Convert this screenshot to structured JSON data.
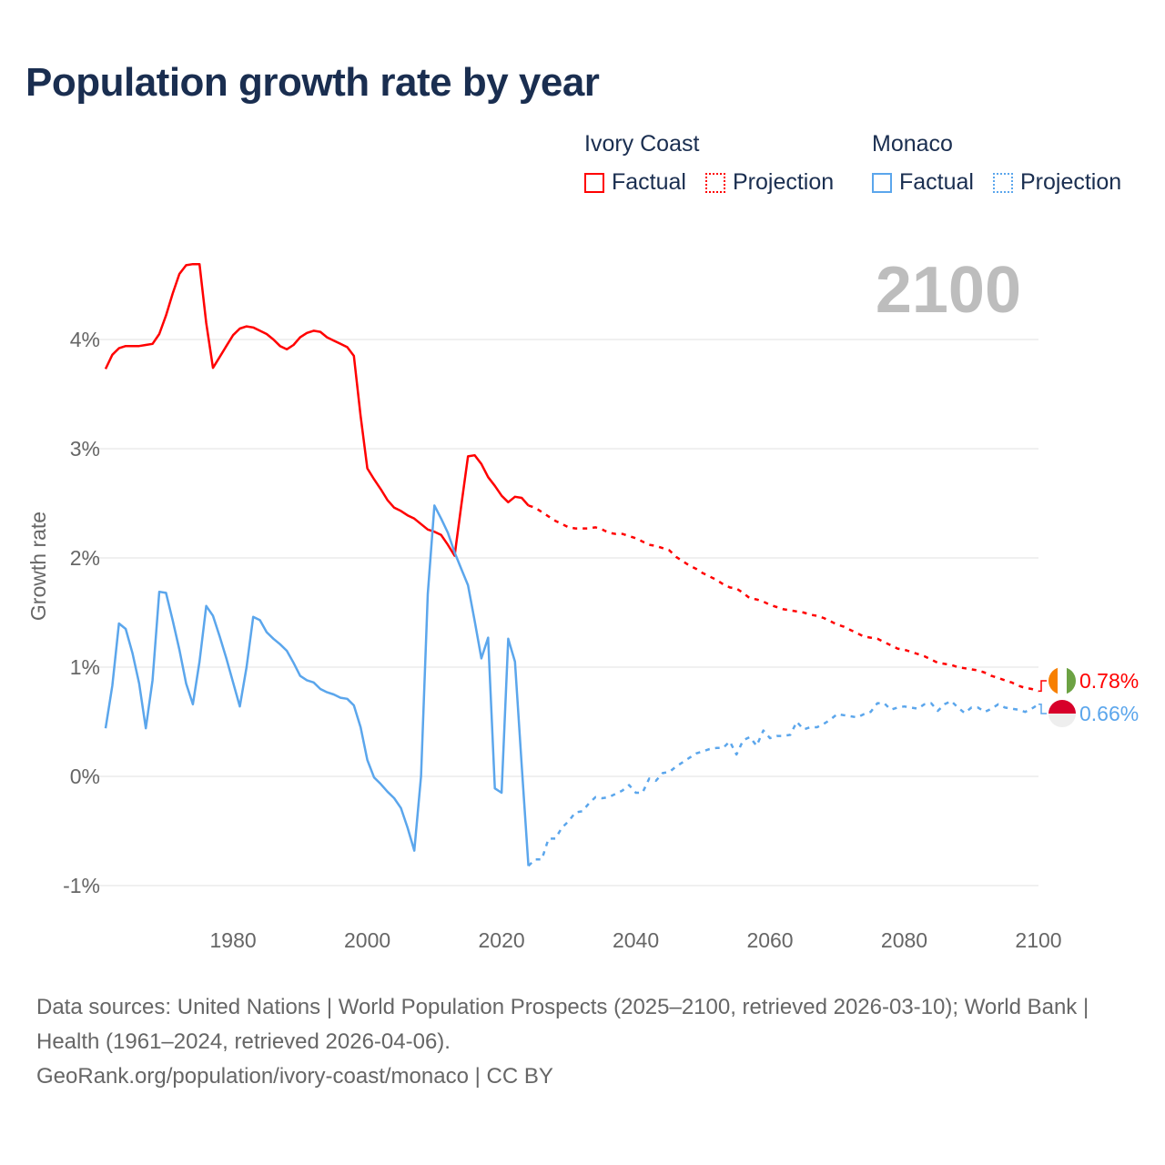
{
  "title": "Population growth rate by year",
  "legend": {
    "groups": [
      {
        "name": "Ivory Coast",
        "color": "#ff0000",
        "factual_label": "Factual",
        "projection_label": "Projection"
      },
      {
        "name": "Monaco",
        "color": "#5ba6ec",
        "factual_label": "Factual",
        "projection_label": "Projection"
      }
    ]
  },
  "year_display": "2100",
  "end_labels": {
    "ivory_coast": "0.78%",
    "monaco": "0.66%"
  },
  "flags": {
    "ivory_coast": [
      "#f77f00",
      "#ffffff",
      "#6ca243"
    ],
    "monaco": [
      "#d7002a",
      "#eeeeee"
    ]
  },
  "chart_data": {
    "type": "line",
    "title": "Population growth rate by year",
    "xlabel": "",
    "ylabel": "Growth rate",
    "xlim": [
      1961,
      2100
    ],
    "ylim": [
      -1.2,
      4.9
    ],
    "x_ticks": [
      1980,
      2000,
      2020,
      2040,
      2060,
      2080,
      2100
    ],
    "x_tick_labels": [
      "1980",
      "2000",
      "2020",
      "2040",
      "2060",
      "2080",
      "2100"
    ],
    "y_ticks": [
      -1,
      0,
      1,
      2,
      3,
      4
    ],
    "y_tick_labels": [
      "-1%",
      "0%",
      "1%",
      "2%",
      "3%",
      "4%"
    ],
    "grid": true,
    "legend_position": "top-right",
    "series": [
      {
        "name": "Ivory Coast Factual",
        "color": "#ff0000",
        "style": "solid",
        "x_start": 1961,
        "values": [
          3.73,
          3.86,
          3.92,
          3.94,
          3.94,
          3.94,
          3.95,
          3.96,
          4.05,
          4.22,
          4.42,
          4.6,
          4.68,
          4.69,
          4.69,
          4.15,
          3.74,
          3.84,
          3.94,
          4.04,
          4.1,
          4.12,
          4.11,
          4.08,
          4.05,
          4.0,
          3.94,
          3.91,
          3.95,
          4.02,
          4.06,
          4.08,
          4.07,
          4.02,
          3.99,
          3.96,
          3.93,
          3.85,
          3.3,
          2.82,
          2.72,
          2.63,
          2.53,
          2.46,
          2.43,
          2.39,
          2.36,
          2.31,
          2.26,
          2.24,
          2.21,
          2.12,
          2.02,
          2.48,
          2.93,
          2.94,
          2.86,
          2.74,
          2.66,
          2.57,
          2.51,
          2.56,
          2.55,
          2.48
        ]
      },
      {
        "name": "Ivory Coast Projection",
        "color": "#ff0000",
        "style": "dotted",
        "x_start": 2024,
        "values": [
          2.48,
          2.46,
          2.42,
          2.38,
          2.34,
          2.31,
          2.28,
          2.27,
          2.27,
          2.27,
          2.28,
          2.26,
          2.23,
          2.22,
          2.22,
          2.2,
          2.18,
          2.15,
          2.12,
          2.11,
          2.09,
          2.07,
          2.01,
          1.97,
          1.93,
          1.9,
          1.86,
          1.83,
          1.8,
          1.76,
          1.73,
          1.72,
          1.68,
          1.63,
          1.62,
          1.6,
          1.57,
          1.55,
          1.53,
          1.52,
          1.51,
          1.5,
          1.48,
          1.47,
          1.45,
          1.42,
          1.39,
          1.37,
          1.34,
          1.31,
          1.28,
          1.27,
          1.26,
          1.23,
          1.2,
          1.17,
          1.16,
          1.14,
          1.12,
          1.1,
          1.07,
          1.04,
          1.03,
          1.02,
          1.0,
          0.99,
          0.98,
          0.97,
          0.95,
          0.92,
          0.9,
          0.88,
          0.86,
          0.83,
          0.81,
          0.8,
          0.78
        ]
      },
      {
        "name": "Monaco Factual",
        "color": "#5ba6ec",
        "style": "solid",
        "x_start": 1961,
        "values": [
          0.44,
          0.83,
          1.4,
          1.35,
          1.13,
          0.85,
          0.44,
          0.88,
          1.69,
          1.68,
          1.43,
          1.16,
          0.85,
          0.66,
          1.05,
          1.56,
          1.47,
          1.28,
          1.08,
          0.86,
          0.64,
          1.0,
          1.46,
          1.43,
          1.32,
          1.26,
          1.21,
          1.15,
          1.04,
          0.92,
          0.88,
          0.86,
          0.8,
          0.77,
          0.75,
          0.72,
          0.71,
          0.65,
          0.45,
          0.15,
          -0.01,
          -0.07,
          -0.14,
          -0.2,
          -0.29,
          -0.47,
          -0.68,
          0.0,
          1.67,
          2.48,
          2.36,
          2.23,
          2.05,
          1.9,
          1.75,
          1.42,
          1.08,
          1.27,
          -0.11,
          -0.15,
          1.26,
          1.05,
          0.1,
          -0.82
        ]
      },
      {
        "name": "Monaco Projection",
        "color": "#5ba6ec",
        "style": "dotted",
        "x_start": 2024,
        "values": [
          -0.82,
          -0.76,
          -0.76,
          -0.57,
          -0.57,
          -0.47,
          -0.41,
          -0.33,
          -0.32,
          -0.25,
          -0.19,
          -0.2,
          -0.19,
          -0.16,
          -0.13,
          -0.08,
          -0.15,
          -0.15,
          -0.02,
          -0.04,
          0.03,
          0.04,
          0.09,
          0.13,
          0.17,
          0.21,
          0.23,
          0.25,
          0.26,
          0.26,
          0.32,
          0.2,
          0.33,
          0.36,
          0.28,
          0.42,
          0.35,
          0.37,
          0.37,
          0.38,
          0.5,
          0.43,
          0.45,
          0.45,
          0.48,
          0.52,
          0.57,
          0.56,
          0.55,
          0.54,
          0.57,
          0.59,
          0.67,
          0.67,
          0.61,
          0.63,
          0.64,
          0.63,
          0.62,
          0.66,
          0.67,
          0.6,
          0.66,
          0.69,
          0.63,
          0.58,
          0.63,
          0.63,
          0.59,
          0.62,
          0.66,
          0.63,
          0.62,
          0.61,
          0.59,
          0.62,
          0.66
        ]
      }
    ]
  },
  "footer": {
    "sources": "Data sources: United Nations | World Population Prospects (2025–2100, retrieved 2026-03-10); World Bank | Health (1961–2024, retrieved 2026-04-06).",
    "link": "GeoRank.org/population/ivory-coast/monaco | CC BY"
  }
}
